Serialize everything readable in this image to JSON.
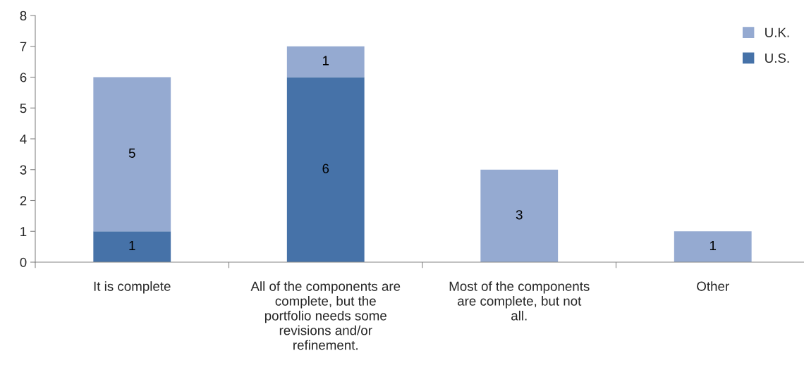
{
  "chart_data": {
    "type": "bar",
    "stacked": true,
    "categories": [
      "It is complete",
      "All of the components are complete, but the portfolio needs some revisions and/or refinement.",
      "Most of the components are complete, but not all.",
      "Other"
    ],
    "series": [
      {
        "name": "U.S.",
        "color": "#4672a8",
        "values": [
          1,
          6,
          0,
          0
        ],
        "value_labels": [
          "1",
          "6",
          null,
          null
        ]
      },
      {
        "name": "U.K.",
        "color": "#95aad1",
        "values": [
          5,
          1,
          3,
          1
        ],
        "value_labels": [
          "5",
          "1",
          "3",
          "1"
        ]
      }
    ],
    "ylim": [
      0,
      8
    ],
    "yticks": [
      0,
      1,
      2,
      3,
      4,
      5,
      6,
      7,
      8
    ],
    "grid": false,
    "legend": "top right"
  }
}
